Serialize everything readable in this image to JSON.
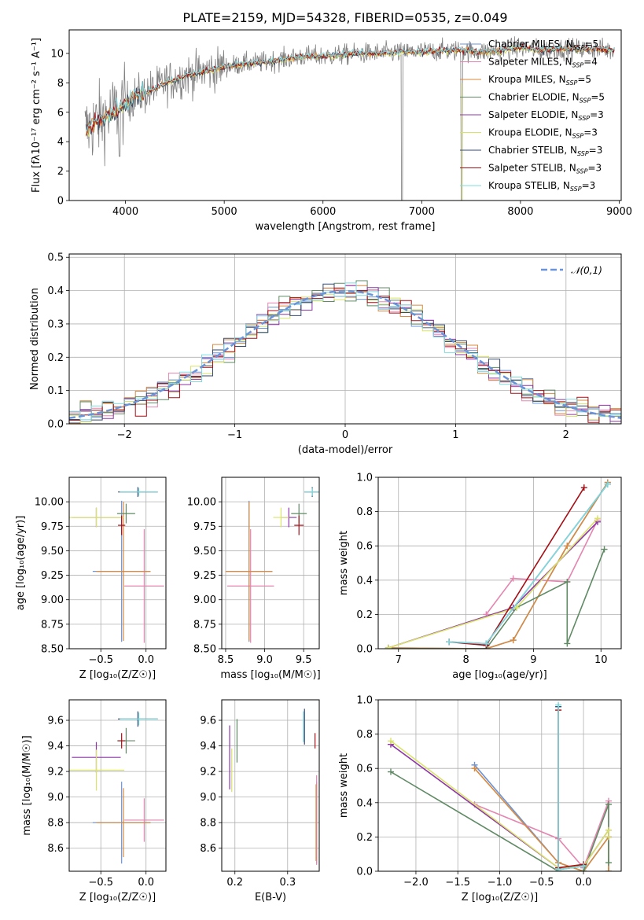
{
  "figure_title": "PLATE=2159, MJD=54328, FIBERID=0535, z=0.049",
  "colors": {
    "Chabrier MILES": "#6a93d8",
    "Salpeter MILES": "#e486b0",
    "Kroupa MILES": "#d88a3e",
    "Chabrier ELODIE": "#5f8a64",
    "Salpeter ELODIE": "#8e35a8",
    "Kroupa ELODIE": "#d9e36a",
    "Chabrier STELIB": "#374a6a",
    "Salpeter STELIB": "#a50f15",
    "Kroupa STELIB": "#7fdbe0",
    "data": "#808080",
    "normal": "#6a93d8"
  },
  "chart_data": [
    {
      "type": "line",
      "id": "spectrum",
      "title": "PLATE=2159, MJD=54328, FIBERID=0535, z=0.049",
      "xlabel": "wavelength [Angstrom, rest frame]",
      "ylabel": "Flux [fλ10⁻¹⁷ erg cm⁻² s⁻¹ A⁻¹]",
      "xlim": [
        3430,
        9020
      ],
      "ylim": [
        0,
        11.6
      ],
      "xticks": [
        4000,
        5000,
        6000,
        7000,
        8000,
        9000
      ],
      "yticks": [
        0,
        2,
        4,
        6,
        8,
        10
      ],
      "legend_position": "top-right",
      "legend": [
        {
          "name": "Chabrier MILES",
          "nssp": "5"
        },
        {
          "name": "Salpeter MILES",
          "nssp": "4"
        },
        {
          "name": "Kroupa MILES",
          "nssp": "5"
        },
        {
          "name": "Chabrier ELODIE",
          "nssp": "5"
        },
        {
          "name": "Salpeter ELODIE",
          "nssp": "3"
        },
        {
          "name": "Kroupa ELODIE",
          "nssp": "3"
        },
        {
          "name": "Chabrier STELIB",
          "nssp": "3"
        },
        {
          "name": "Salpeter STELIB",
          "nssp": "3"
        },
        {
          "name": "Kroupa STELIB",
          "nssp": "3"
        }
      ],
      "continuum": [
        [
          3600,
          4.8
        ],
        [
          3700,
          5.3
        ],
        [
          3800,
          5.7
        ],
        [
          3900,
          6.1
        ],
        [
          4000,
          6.6
        ],
        [
          4100,
          7.1
        ],
        [
          4200,
          7.3
        ],
        [
          4300,
          7.6
        ],
        [
          4400,
          8.0
        ],
        [
          4500,
          8.2
        ],
        [
          4600,
          8.5
        ],
        [
          4700,
          8.6
        ],
        [
          4800,
          8.8
        ],
        [
          4900,
          8.9
        ],
        [
          5000,
          9.1
        ],
        [
          5200,
          9.3
        ],
        [
          5400,
          9.4
        ],
        [
          5600,
          9.6
        ],
        [
          5800,
          9.8
        ],
        [
          6000,
          9.8
        ],
        [
          6200,
          9.9
        ],
        [
          6400,
          10.0
        ],
        [
          6600,
          10.0
        ],
        [
          6800,
          10.1
        ],
        [
          7000,
          10.1
        ],
        [
          7200,
          10.2
        ],
        [
          7400,
          10.2
        ],
        [
          7600,
          10.1
        ],
        [
          7800,
          10.2
        ],
        [
          8000,
          10.4
        ],
        [
          8200,
          10.2
        ],
        [
          8400,
          10.3
        ],
        [
          8600,
          10.3
        ],
        [
          8800,
          10.3
        ],
        [
          8950,
          10.2
        ]
      ]
    },
    {
      "type": "histogram",
      "id": "residuals",
      "xlabel": "(data-model)/error",
      "ylabel": "Normed distribution",
      "xlim": [
        -2.5,
        2.5
      ],
      "ylim": [
        0,
        0.51
      ],
      "xticks": [
        -2,
        -1,
        0,
        1,
        2
      ],
      "yticks": [
        0.0,
        0.1,
        0.2,
        0.3,
        0.4,
        0.5
      ],
      "grid": true,
      "legend_position": "top-right",
      "reference_curve": {
        "name": "𝒩(0,1)",
        "mean": 0,
        "sigma": 1
      },
      "bin_width": 0.1
    },
    {
      "type": "scatter",
      "id": "age_vs_Z",
      "xlabel": "Z [log₁₀(Z/Z☉)]",
      "ylabel": "age [log₁₀(age/yr)]",
      "xlim": [
        -0.85,
        0.22
      ],
      "ylim": [
        8.5,
        10.25
      ],
      "xticks": [
        -0.5,
        0.0
      ],
      "yticks": [
        8.5,
        8.75,
        9.0,
        9.25,
        9.5,
        9.75,
        10.0
      ],
      "grid": true,
      "errorbars": [
        {
          "model": "Chabrier MILES",
          "x": -0.27,
          "xerr": 0.32,
          "y": 9.29,
          "yerr": 0.72
        },
        {
          "model": "Salpeter MILES",
          "x": -0.02,
          "xerr": 0.22,
          "y": 9.14,
          "yerr": 0.58
        },
        {
          "model": "Kroupa MILES",
          "x": -0.25,
          "xerr": 0.3,
          "y": 9.29,
          "yerr": 0.71
        },
        {
          "model": "Chabrier ELODIE",
          "x": -0.22,
          "xerr": 0.1,
          "y": 9.88,
          "yerr": 0.1
        },
        {
          "model": "Salpeter ELODIE",
          "x": -0.55,
          "xerr": 0.27,
          "y": 9.84,
          "yerr": 0.1
        },
        {
          "model": "Kroupa ELODIE",
          "x": -0.55,
          "xerr": 0.31,
          "y": 9.84,
          "yerr": 0.1
        },
        {
          "model": "Chabrier STELIB",
          "x": -0.09,
          "xerr": 0.22,
          "y": 10.1,
          "yerr": 0.05
        },
        {
          "model": "Salpeter STELIB",
          "x": -0.27,
          "xerr": 0.04,
          "y": 9.76,
          "yerr": 0.1
        },
        {
          "model": "Kroupa STELIB",
          "x": -0.08,
          "xerr": 0.21,
          "y": 10.1,
          "yerr": 0.04
        }
      ]
    },
    {
      "type": "scatter",
      "id": "age_vs_mass",
      "xlabel": "mass [log₁₀(M/M☉)]",
      "ylabel": "",
      "xlim": [
        8.45,
        9.7
      ],
      "ylim": [
        8.5,
        10.25
      ],
      "xticks": [
        8.5,
        9.0,
        9.5
      ],
      "yticks": [
        8.5,
        8.75,
        9.0,
        9.25,
        9.5,
        9.75,
        10.0
      ],
      "grid": true,
      "errorbars": [
        {
          "model": "Chabrier MILES",
          "x": 8.8,
          "xerr": 0.3,
          "y": 9.29,
          "yerr": 0.72
        },
        {
          "model": "Salpeter MILES",
          "x": 8.82,
          "xerr": 0.3,
          "y": 9.14,
          "yerr": 0.58
        },
        {
          "model": "Kroupa MILES",
          "x": 8.8,
          "xerr": 0.3,
          "y": 9.29,
          "yerr": 0.71
        },
        {
          "model": "Chabrier ELODIE",
          "x": 9.44,
          "xerr": 0.1,
          "y": 9.88,
          "yerr": 0.1
        },
        {
          "model": "Salpeter ELODIE",
          "x": 9.31,
          "xerr": 0.1,
          "y": 9.84,
          "yerr": 0.1
        },
        {
          "model": "Kroupa ELODIE",
          "x": 9.21,
          "xerr": 0.1,
          "y": 9.84,
          "yerr": 0.1
        },
        {
          "model": "Chabrier STELIB",
          "x": 9.61,
          "xerr": 0.1,
          "y": 10.1,
          "yerr": 0.05
        },
        {
          "model": "Salpeter STELIB",
          "x": 9.44,
          "xerr": 0.06,
          "y": 9.76,
          "yerr": 0.1
        },
        {
          "model": "Kroupa STELIB",
          "x": 9.61,
          "xerr": 0.1,
          "y": 10.1,
          "yerr": 0.04
        }
      ]
    },
    {
      "type": "line",
      "id": "massweight_vs_age",
      "xlabel": "age [log₁₀(age/yr)]",
      "ylabel": "mass weight",
      "xlim": [
        6.7,
        10.3
      ],
      "ylim": [
        0,
        1.0
      ],
      "xticks": [
        7,
        8,
        9,
        10
      ],
      "yticks": [
        0.0,
        0.2,
        0.4,
        0.6,
        0.8,
        1.0
      ],
      "grid": true,
      "series": [
        {
          "model": "Chabrier MILES",
          "x": [
            6.85,
            8.3,
            8.7,
            9.5,
            10.1
          ],
          "y": [
            0.005,
            0.0,
            0.05,
            0.6,
            0.97
          ]
        },
        {
          "model": "Salpeter MILES",
          "x": [
            8.3,
            8.7,
            9.5,
            9.95
          ],
          "y": [
            0.2,
            0.41,
            0.39,
            0.75
          ]
        },
        {
          "model": "Kroupa MILES",
          "x": [
            6.85,
            8.3,
            8.7,
            9.5,
            10.1
          ],
          "y": [
            0.005,
            0.0,
            0.05,
            0.6,
            0.97
          ]
        },
        {
          "model": "Chabrier ELODIE",
          "x": [
            6.85,
            8.3,
            8.75,
            9.5,
            9.5,
            10.05
          ],
          "y": [
            0.0,
            0.0,
            0.24,
            0.39,
            0.03,
            0.58
          ]
        },
        {
          "model": "Salpeter ELODIE",
          "x": [
            6.85,
            8.7,
            9.95
          ],
          "y": [
            0.005,
            0.24,
            0.74
          ]
        },
        {
          "model": "Kroupa ELODIE",
          "x": [
            6.85,
            8.75,
            9.95
          ],
          "y": [
            0.005,
            0.24,
            0.76
          ]
        },
        {
          "model": "Chabrier STELIB",
          "x": [
            7.75,
            8.3,
            10.1
          ],
          "y": [
            0.04,
            0.03,
            0.96
          ]
        },
        {
          "model": "Salpeter STELIB",
          "x": [
            7.75,
            8.3,
            8.3,
            9.75
          ],
          "y": [
            0.04,
            0.02,
            0.02,
            0.94
          ]
        },
        {
          "model": "Kroupa STELIB",
          "x": [
            7.75,
            8.3,
            10.1
          ],
          "y": [
            0.04,
            0.03,
            0.96
          ]
        }
      ]
    },
    {
      "type": "scatter",
      "id": "mass_vs_Z",
      "xlabel": "Z [log₁₀(Z/Z☉)]",
      "ylabel": "mass [log₁₀(M/M☉)]",
      "xlim": [
        -0.85,
        0.22
      ],
      "ylim": [
        8.42,
        9.76
      ],
      "xticks": [
        -0.5,
        0.0
      ],
      "yticks": [
        8.6,
        8.8,
        9.0,
        9.2,
        9.4,
        9.6
      ],
      "grid": true,
      "errorbars": [
        {
          "model": "Chabrier MILES",
          "x": -0.27,
          "xerr": 0.32,
          "y": 8.8,
          "yerr": 0.32
        },
        {
          "model": "Salpeter MILES",
          "x": -0.02,
          "xerr": 0.22,
          "y": 8.82,
          "yerr": 0.17
        },
        {
          "model": "Kroupa MILES",
          "x": -0.25,
          "xerr": 0.3,
          "y": 8.8,
          "yerr": 0.27
        },
        {
          "model": "Chabrier ELODIE",
          "x": -0.22,
          "xerr": 0.1,
          "y": 9.44,
          "yerr": 0.1
        },
        {
          "model": "Salpeter ELODIE",
          "x": -0.55,
          "xerr": 0.27,
          "y": 9.31,
          "yerr": 0.12
        },
        {
          "model": "Kroupa ELODIE",
          "x": -0.55,
          "xerr": 0.31,
          "y": 9.21,
          "yerr": 0.16
        },
        {
          "model": "Chabrier STELIB",
          "x": -0.09,
          "xerr": 0.22,
          "y": 9.61,
          "yerr": 0.06
        },
        {
          "model": "Salpeter STELIB",
          "x": -0.27,
          "xerr": 0.04,
          "y": 9.44,
          "yerr": 0.06
        },
        {
          "model": "Kroupa STELIB",
          "x": -0.08,
          "xerr": 0.21,
          "y": 9.61,
          "yerr": 0.05
        }
      ]
    },
    {
      "type": "scatter",
      "id": "mass_vs_EBV",
      "xlabel": "E(B-V)",
      "ylabel": "",
      "xlim": [
        0.175,
        0.36
      ],
      "ylim": [
        8.42,
        9.76
      ],
      "xticks": [
        0.2,
        0.3
      ],
      "yticks": [
        8.6,
        8.8,
        9.0,
        9.2,
        9.4,
        9.6
      ],
      "grid": true,
      "errorbars": [
        {
          "model": "Chabrier MILES",
          "x": 0.355,
          "xerr": 0.0,
          "y": 8.8,
          "yerr": 0.32
        },
        {
          "model": "Salpeter MILES",
          "x": 0.355,
          "xerr": 0.0,
          "y": 8.82,
          "yerr": 0.35
        },
        {
          "model": "Kroupa MILES",
          "x": 0.354,
          "xerr": 0.0,
          "y": 8.8,
          "yerr": 0.3
        },
        {
          "model": "Chabrier ELODIE",
          "x": 0.204,
          "xerr": 0.0,
          "y": 9.44,
          "yerr": 0.17
        },
        {
          "model": "Salpeter ELODIE",
          "x": 0.19,
          "xerr": 0.0,
          "y": 9.31,
          "yerr": 0.25
        },
        {
          "model": "Kroupa ELODIE",
          "x": 0.194,
          "xerr": 0.0,
          "y": 9.21,
          "yerr": 0.17
        },
        {
          "model": "Chabrier STELIB",
          "x": 0.332,
          "xerr": 0.0,
          "y": 9.55,
          "yerr": 0.14
        },
        {
          "model": "Salpeter STELIB",
          "x": 0.352,
          "xerr": 0.0,
          "y": 9.44,
          "yerr": 0.06
        },
        {
          "model": "Kroupa STELIB",
          "x": 0.33,
          "xerr": 0.0,
          "y": 9.55,
          "yerr": 0.12
        }
      ]
    },
    {
      "type": "line",
      "id": "massweight_vs_Z",
      "xlabel": "Z [log₁₀(Z/Z☉)]",
      "ylabel": "mass weight",
      "xlim": [
        -2.45,
        0.45
      ],
      "ylim": [
        0,
        1.0
      ],
      "xticks": [
        -2.0,
        -1.5,
        -1.0,
        -0.5,
        0.0
      ],
      "yticks": [
        0.0,
        0.2,
        0.4,
        0.6,
        0.8,
        1.0
      ],
      "grid": true,
      "series": [
        {
          "model": "Chabrier MILES",
          "x": [
            -1.3,
            -0.3,
            0.0,
            0.3,
            0.3
          ],
          "y": [
            0.62,
            0.05,
            0.0,
            0.2,
            0.0
          ]
        },
        {
          "model": "Salpeter MILES",
          "x": [
            -1.3,
            -0.3,
            0.0,
            0.3,
            0.3
          ],
          "y": [
            0.39,
            0.19,
            0.02,
            0.41,
            0.2
          ]
        },
        {
          "model": "Kroupa MILES",
          "x": [
            -1.3,
            -0.3,
            0.0,
            0.3,
            0.3
          ],
          "y": [
            0.6,
            0.05,
            0.0,
            0.2,
            0.0
          ]
        },
        {
          "model": "Chabrier ELODIE",
          "x": [
            -2.3,
            -0.3,
            0.0,
            0.3,
            0.3
          ],
          "y": [
            0.58,
            0.0,
            0.0,
            0.39,
            0.05
          ]
        },
        {
          "model": "Salpeter ELODIE",
          "x": [
            -2.3,
            -0.3,
            0.0,
            0.3,
            0.3
          ],
          "y": [
            0.74,
            0.02,
            0.03,
            0.24,
            0.2
          ]
        },
        {
          "model": "Kroupa ELODIE",
          "x": [
            -2.3,
            -0.3,
            0.0,
            0.3,
            0.3
          ],
          "y": [
            0.76,
            0.02,
            0.03,
            0.24,
            0.2
          ]
        },
        {
          "model": "Chabrier STELIB",
          "x": [
            -0.3,
            -0.3,
            0.0
          ],
          "y": [
            0.96,
            0.01,
            0.03
          ]
        },
        {
          "model": "Salpeter STELIB",
          "x": [
            -0.3,
            -0.3,
            0.0
          ],
          "y": [
            0.94,
            0.02,
            0.04
          ]
        },
        {
          "model": "Kroupa STELIB",
          "x": [
            -0.3,
            -0.3,
            0.0
          ],
          "y": [
            0.97,
            0.01,
            0.03
          ]
        }
      ]
    }
  ]
}
